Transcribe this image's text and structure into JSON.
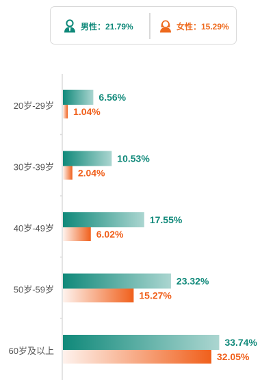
{
  "legend": {
    "male": {
      "label": "男性：21.79%",
      "icon": "male-person-icon",
      "color": "#10897a"
    },
    "female": {
      "label": "女性：15.29%",
      "icon": "female-person-icon",
      "color": "#ee6a1e"
    }
  },
  "colors": {
    "male": "#10897a",
    "female": "#f0601c",
    "label_text": "#555555"
  },
  "chart_data": {
    "type": "bar",
    "orientation": "horizontal",
    "categories": [
      "20岁-29岁",
      "30岁-39岁",
      "40岁-49岁",
      "50岁-59岁",
      "60岁及以上"
    ],
    "series": [
      {
        "key": "male",
        "values": [
          6.56,
          10.53,
          17.55,
          23.32,
          33.74
        ],
        "labels": [
          "6.56%",
          "10.53%",
          "17.55%",
          "23.32%",
          "33.74%"
        ]
      },
      {
        "key": "female",
        "values": [
          1.04,
          2.04,
          6.02,
          15.27,
          32.05
        ],
        "labels": [
          "1.04%",
          "2.04%",
          "6.02%",
          "15.27%",
          "32.05%"
        ]
      }
    ],
    "xlim": [
      0,
      35
    ],
    "title": "",
    "xlabel": "",
    "ylabel": "",
    "legend_position": "top"
  }
}
